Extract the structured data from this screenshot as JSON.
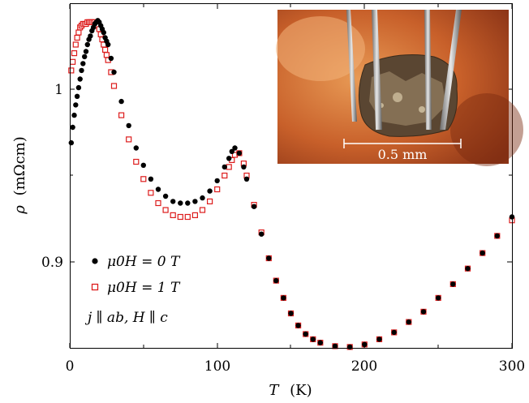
{
  "chart_data": {
    "type": "scatter",
    "xlabel_symbol": "T",
    "xlabel_unit": "(K)",
    "ylabel_symbol": "ρ",
    "ylabel_unit": "(mΩcm)",
    "xlim": [
      0,
      300
    ],
    "ylim": [
      0.85,
      1.05
    ],
    "x_ticks": [
      "0",
      "100",
      "200",
      "300"
    ],
    "y_ticks": [
      "0.9",
      "1"
    ],
    "grid": false,
    "legend_position": "bottom-left",
    "legend_note": "j ∥ ab, H ∥ c",
    "series": [
      {
        "name": "μ0H = 0 T",
        "color": "#000000",
        "marker": "filled-circle",
        "x": [
          1,
          2,
          3,
          4,
          5,
          6,
          7,
          8,
          9,
          10,
          11,
          12,
          13,
          14,
          15,
          16,
          17,
          18,
          19,
          20,
          21,
          22,
          23,
          24,
          25,
          26,
          28,
          30,
          35,
          40,
          45,
          50,
          55,
          60,
          65,
          70,
          75,
          80,
          85,
          90,
          95,
          100,
          105,
          108,
          110,
          112,
          115,
          118,
          120,
          125,
          130,
          135,
          140,
          145,
          150,
          155,
          160,
          165,
          170,
          180,
          190,
          200,
          210,
          220,
          230,
          240,
          250,
          260,
          270,
          280,
          290,
          300
        ],
        "y": [
          0.969,
          0.978,
          0.985,
          0.991,
          0.996,
          1.001,
          1.006,
          1.011,
          1.015,
          1.019,
          1.022,
          1.026,
          1.029,
          1.031,
          1.034,
          1.036,
          1.038,
          1.039,
          1.04,
          1.039,
          1.037,
          1.035,
          1.033,
          1.03,
          1.028,
          1.026,
          1.018,
          1.01,
          0.993,
          0.979,
          0.966,
          0.956,
          0.948,
          0.942,
          0.938,
          0.935,
          0.934,
          0.934,
          0.935,
          0.937,
          0.941,
          0.947,
          0.955,
          0.96,
          0.964,
          0.966,
          0.963,
          0.955,
          0.948,
          0.932,
          0.916,
          0.902,
          0.889,
          0.879,
          0.87,
          0.863,
          0.858,
          0.855,
          0.853,
          0.851,
          0.8505,
          0.852,
          0.855,
          0.859,
          0.865,
          0.871,
          0.879,
          0.887,
          0.896,
          0.905,
          0.915,
          0.926
        ]
      },
      {
        "name": "μ0H = 1 T",
        "color": "#dd1c1c",
        "marker": "open-square",
        "x": [
          1,
          2,
          3,
          4,
          5,
          6,
          7,
          8,
          9,
          10,
          11,
          12,
          13,
          14,
          15,
          16,
          17,
          18,
          19,
          20,
          21,
          22,
          23,
          24,
          25,
          26,
          28,
          30,
          35,
          40,
          45,
          50,
          55,
          60,
          65,
          70,
          75,
          80,
          85,
          90,
          95,
          100,
          105,
          108,
          110,
          112,
          115,
          118,
          120,
          125,
          130,
          135,
          140,
          145,
          150,
          155,
          160,
          165,
          170,
          180,
          190,
          200,
          210,
          220,
          230,
          240,
          250,
          260,
          270,
          280,
          290,
          300
        ],
        "y": [
          1.011,
          1.016,
          1.021,
          1.026,
          1.03,
          1.033,
          1.036,
          1.037,
          1.038,
          1.038,
          1.038,
          1.039,
          1.039,
          1.039,
          1.039,
          1.039,
          1.039,
          1.038,
          1.037,
          1.035,
          1.032,
          1.029,
          1.026,
          1.023,
          1.02,
          1.017,
          1.01,
          1.002,
          0.985,
          0.971,
          0.958,
          0.948,
          0.94,
          0.934,
          0.93,
          0.927,
          0.926,
          0.926,
          0.927,
          0.93,
          0.935,
          0.942,
          0.95,
          0.955,
          0.959,
          0.962,
          0.963,
          0.957,
          0.95,
          0.933,
          0.917,
          0.902,
          0.889,
          0.879,
          0.87,
          0.863,
          0.858,
          0.855,
          0.853,
          0.851,
          0.8505,
          0.852,
          0.855,
          0.859,
          0.865,
          0.871,
          0.879,
          0.887,
          0.896,
          0.905,
          0.915,
          0.924
        ]
      }
    ]
  },
  "inset": {
    "scale_label": "0.5 mm"
  },
  "colors": {
    "axis": "#000000",
    "series_zero_field": "#000000",
    "series_one_tesla": "#dd1c1c"
  }
}
